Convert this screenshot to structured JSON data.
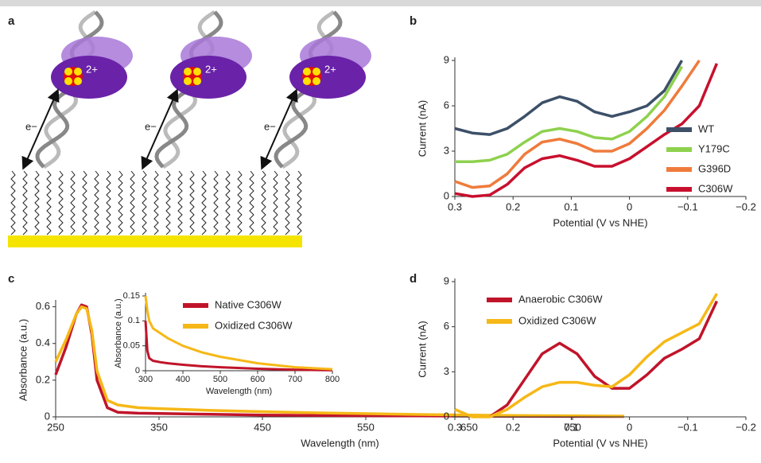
{
  "diagram": {
    "label": "a",
    "electron": "e−",
    "charge": "2+"
  },
  "chart_data": [
    {
      "type": "line",
      "label": "b",
      "xlabel": "Potential (V vs NHE)",
      "ylabel": "Current (nA)",
      "x": [
        0.3,
        0.27,
        0.24,
        0.21,
        0.18,
        0.15,
        0.12,
        0.09,
        0.06,
        0.03,
        0,
        -0.03,
        -0.06,
        -0.09,
        -0.12,
        -0.15
      ],
      "xlim": [
        0.3,
        -0.2
      ],
      "xticks": [
        0.3,
        0.2,
        0.1,
        0,
        {
          "value": -0.1,
          "label": "−0.1"
        },
        {
          "value": -0.2,
          "label": "−0.2"
        }
      ],
      "ylim": [
        0,
        9
      ],
      "yticks": [
        0,
        3,
        6,
        9
      ],
      "legend": "lower right",
      "series": [
        {
          "name": "WT",
          "color": "#3d5068",
          "values": [
            4.5,
            4.2,
            4.1,
            4.5,
            5.3,
            6.2,
            6.6,
            6.3,
            5.6,
            5.3,
            5.6,
            6.0,
            7.0,
            9.0,
            null,
            null
          ]
        },
        {
          "name": "Y179C",
          "color": "#8ed14e",
          "values": [
            2.3,
            2.3,
            2.4,
            2.8,
            3.6,
            4.3,
            4.5,
            4.3,
            3.9,
            3.8,
            4.3,
            5.3,
            6.6,
            8.6,
            null,
            null
          ]
        },
        {
          "name": "G396D",
          "color": "#ef7b3b",
          "values": [
            1.0,
            0.6,
            0.7,
            1.5,
            2.8,
            3.6,
            3.8,
            3.5,
            3.0,
            3.0,
            3.5,
            4.5,
            5.7,
            7.3,
            9.0,
            null
          ]
        },
        {
          "name": "C306W",
          "color": "#c8102e",
          "values": [
            0.2,
            0.0,
            0.1,
            0.8,
            1.9,
            2.5,
            2.7,
            2.4,
            2.0,
            2.0,
            2.5,
            3.3,
            4.1,
            4.8,
            6.0,
            8.8
          ]
        }
      ]
    },
    {
      "type": "line",
      "label": "c",
      "xlabel": "Wavelength (nm)",
      "ylabel": "Absorbance (a.u.)",
      "x": [
        250,
        260,
        270,
        275,
        280,
        285,
        290,
        300,
        310,
        330,
        350,
        400,
        450,
        500,
        600,
        700,
        800
      ],
      "xlim": [
        250,
        800
      ],
      "xticks": [
        250,
        350,
        450,
        550,
        650,
        750
      ],
      "ylim": [
        0,
        0.62
      ],
      "yticks": [
        0,
        0.2,
        0.4,
        0.6
      ],
      "legend": "upper center",
      "series": [
        {
          "name": "Native C306W",
          "color": "#c0142a",
          "values": [
            0.23,
            0.38,
            0.56,
            0.61,
            0.6,
            0.45,
            0.2,
            0.05,
            0.025,
            0.02,
            0.018,
            0.014,
            0.01,
            0.008,
            0.005,
            0.003,
            0.002
          ]
        },
        {
          "name": "Oxidized C306W",
          "color": "#f6b817",
          "values": [
            0.3,
            0.42,
            0.56,
            0.6,
            0.59,
            0.47,
            0.25,
            0.09,
            0.065,
            0.05,
            0.045,
            0.035,
            0.028,
            0.022,
            0.013,
            0.007,
            0.004
          ]
        }
      ],
      "inset": {
        "type": "line",
        "xlabel": "Wavelength (nm)",
        "ylabel": "Absorbance (a.u.)",
        "x": [
          300,
          305,
          310,
          320,
          340,
          360,
          400,
          450,
          500,
          600,
          700,
          800
        ],
        "xlim": [
          300,
          800
        ],
        "xticks": [
          300,
          400,
          500,
          600,
          700,
          800
        ],
        "ylim": [
          0,
          0.15
        ],
        "yticks": [
          0,
          0.05,
          0.1,
          0.15
        ],
        "series": [
          {
            "color": "#c0142a",
            "values": [
              0.1,
              0.04,
              0.025,
              0.02,
              0.017,
              0.015,
              0.012,
              0.009,
              0.007,
              0.004,
              0.002,
              0.001
            ]
          },
          {
            "color": "#f6b817",
            "values": [
              0.15,
              0.12,
              0.1,
              0.085,
              0.075,
              0.065,
              0.05,
              0.037,
              0.028,
              0.015,
              0.007,
              0.003
            ]
          }
        ]
      }
    },
    {
      "type": "line",
      "label": "d",
      "xlabel": "Potential (V vs NHE)",
      "ylabel": "Current (nA)",
      "x": [
        0.3,
        0.27,
        0.24,
        0.21,
        0.18,
        0.15,
        0.12,
        0.09,
        0.06,
        0.03,
        0,
        -0.03,
        -0.06,
        -0.09,
        -0.12,
        -0.15
      ],
      "xlim": [
        0.3,
        -0.2
      ],
      "xticks": [
        0.3,
        0.2,
        0.1,
        0,
        {
          "value": -0.1,
          "label": "−0.1"
        },
        {
          "value": -0.2,
          "label": "−0.2"
        }
      ],
      "ylim": [
        0,
        9
      ],
      "yticks": [
        0,
        3,
        6,
        9
      ],
      "legend": "upper left",
      "series": [
        {
          "name": "Anaerobic C306W",
          "color": "#c0142a",
          "values": [
            null,
            null,
            0.0,
            0.8,
            2.5,
            4.2,
            4.9,
            4.2,
            2.7,
            1.9,
            1.9,
            2.8,
            3.9,
            4.5,
            5.2,
            7.7
          ]
        },
        {
          "name": "Oxidized C306W",
          "color": "#f6b817",
          "values": [
            0.5,
            0.0,
            0.0,
            0.5,
            1.3,
            2.0,
            2.3,
            2.3,
            2.1,
            2.0,
            2.8,
            4.0,
            5.0,
            5.6,
            6.2,
            8.2
          ]
        }
      ]
    }
  ]
}
